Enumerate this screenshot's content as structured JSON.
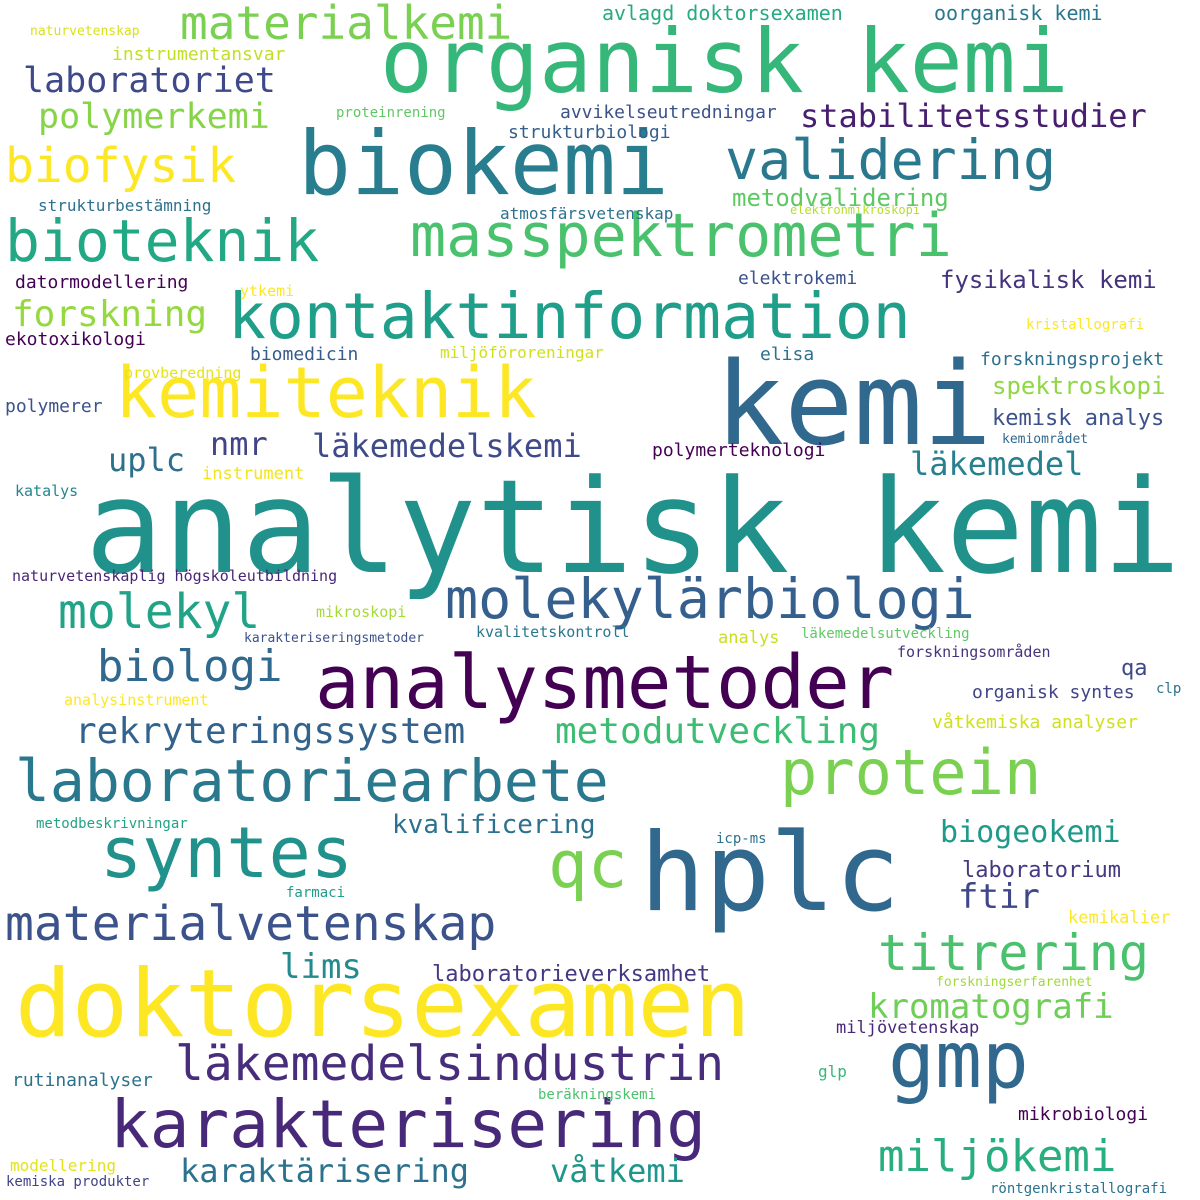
{
  "words": [
    {
      "text": "analytisk kemi",
      "color": "#21918c"
    },
    {
      "text": "kemi",
      "color": "#31688e"
    },
    {
      "text": "organisk kemi",
      "color": "#35b779"
    },
    {
      "text": "biokemi",
      "color": "#287d8e"
    },
    {
      "text": "doktorsexamen",
      "color": "#fde725"
    },
    {
      "text": "hplc",
      "color": "#31688e"
    },
    {
      "text": "analysmetoder",
      "color": "#440154"
    },
    {
      "text": "kontaktinformation",
      "color": "#1f9e89"
    },
    {
      "text": "masspektrometri",
      "color": "#4ac16d"
    },
    {
      "text": "kemiteknik",
      "color": "#fde725"
    },
    {
      "text": "bioteknik",
      "color": "#22a884"
    },
    {
      "text": "validering",
      "color": "#2a788e"
    },
    {
      "text": "gmp",
      "color": "#31688e"
    },
    {
      "text": "karakterisering",
      "color": "#482878"
    },
    {
      "text": "syntes",
      "color": "#21918c"
    },
    {
      "text": "protein",
      "color": "#7ad151"
    },
    {
      "text": "laboratoriearbete",
      "color": "#2a788e"
    },
    {
      "text": "molekylärbiologi",
      "color": "#355f8d"
    },
    {
      "text": "qc",
      "color": "#7ad151"
    },
    {
      "text": "materialkemi",
      "color": "#7ad151"
    },
    {
      "text": "materialvetenskap",
      "color": "#3b528b"
    },
    {
      "text": "läkemedelsindustrin",
      "color": "#472d7b"
    },
    {
      "text": "biofysik",
      "color": "#fde725"
    },
    {
      "text": "molekyl",
      "color": "#20a386"
    },
    {
      "text": "biologi",
      "color": "#31688e"
    },
    {
      "text": "titrering",
      "color": "#4ac16d"
    },
    {
      "text": "miljökemi",
      "color": "#29af7f"
    },
    {
      "text": "laboratoriet",
      "color": "#3e4989"
    },
    {
      "text": "polymerkemi",
      "color": "#86d549"
    },
    {
      "text": "forskning",
      "color": "#95d840"
    },
    {
      "text": "rekryteringssystem",
      "color": "#33638d"
    },
    {
      "text": "metodutveckling",
      "color": "#3dbc74"
    },
    {
      "text": "kromatografi",
      "color": "#6ece58"
    },
    {
      "text": "karaktärisering",
      "color": "#2c728e"
    },
    {
      "text": "våtkemi",
      "color": "#1f968b"
    },
    {
      "text": "stabilitetsstudier",
      "color": "#481f70"
    },
    {
      "text": "nmr",
      "color": "#414487"
    },
    {
      "text": "läkemedelskemi",
      "color": "#3e4a89"
    },
    {
      "text": "uplc",
      "color": "#2d708e"
    },
    {
      "text": "läkemedel",
      "color": "#27808e"
    },
    {
      "text": "biogeokemi",
      "color": "#1f9a8a"
    },
    {
      "text": "kvalificering",
      "color": "#2c728e"
    },
    {
      "text": "ftir",
      "color": "#3f4788"
    },
    {
      "text": "lims",
      "color": "#238a8d"
    },
    {
      "text": "laboratorieverksamhet",
      "color": "#453882"
    },
    {
      "text": "fysikalisk kemi",
      "color": "#46337e"
    },
    {
      "text": "spektroskopi",
      "color": "#8fd744"
    },
    {
      "text": "metodvalidering",
      "color": "#5ec962"
    },
    {
      "text": "laboratorium",
      "color": "#443983"
    },
    {
      "text": "kemisk analys",
      "color": "#3b528b"
    },
    {
      "text": "avlagd doktorsexamen",
      "color": "#25ab82"
    },
    {
      "text": "oorganisk kemi",
      "color": "#2a788e"
    },
    {
      "text": "instrumentansvar",
      "color": "#c2df23"
    },
    {
      "text": "avvikelseutredningar",
      "color": "#3b528b"
    },
    {
      "text": "strukturbiologi",
      "color": "#355f8d"
    },
    {
      "text": "proteinrening",
      "color": "#5ec962"
    },
    {
      "text": "naturvetenskap",
      "color": "#d8e219"
    },
    {
      "text": "strukturbestämning",
      "color": "#2d708e"
    },
    {
      "text": "atmosfärsvetenskap",
      "color": "#2c728e"
    },
    {
      "text": "elektronmikroskopi",
      "color": "#b5de2b"
    },
    {
      "text": "datormodellering",
      "color": "#440154"
    },
    {
      "text": "ytkemi",
      "color": "#fde725"
    },
    {
      "text": "elektrokemi",
      "color": "#3b528b"
    },
    {
      "text": "ekotoxikologi",
      "color": "#440154"
    },
    {
      "text": "biomedicin",
      "color": "#365c8d"
    },
    {
      "text": "miljöföroreningar",
      "color": "#d0e11c"
    },
    {
      "text": "elisa",
      "color": "#2c728e"
    },
    {
      "text": "forskningsprojekt",
      "color": "#2d708e"
    },
    {
      "text": "kristallografi",
      "color": "#fde725"
    },
    {
      "text": "provberedning",
      "color": "#e5e419"
    },
    {
      "text": "polymerer",
      "color": "#3b528b"
    },
    {
      "text": "instrument",
      "color": "#f1e51d"
    },
    {
      "text": "polymerteknologi",
      "color": "#440154"
    },
    {
      "text": "kemiområdet",
      "color": "#31688e"
    },
    {
      "text": "katalys",
      "color": "#24878e"
    },
    {
      "text": "naturvetenskaplig högskoleutbildning",
      "color": "#482677"
    },
    {
      "text": "mikroskopi",
      "color": "#a5db36"
    },
    {
      "text": "karakteriseringsmetoder",
      "color": "#3b528b"
    },
    {
      "text": "kvalitetskontroll",
      "color": "#2a788e"
    },
    {
      "text": "analys",
      "color": "#c8e020"
    },
    {
      "text": "läkemedelsutveckling",
      "color": "#5ec962"
    },
    {
      "text": "forskningsområden",
      "color": "#46337e"
    },
    {
      "text": "qa",
      "color": "#3e4989"
    },
    {
      "text": "organisk syntes",
      "color": "#414487"
    },
    {
      "text": "clp",
      "color": "#2c728e"
    },
    {
      "text": "analysinstrument",
      "color": "#fde725"
    },
    {
      "text": "våtkemiska analyser",
      "color": "#d0e11c"
    },
    {
      "text": "metodbeskrivningar",
      "color": "#20a386"
    },
    {
      "text": "icp-ms",
      "color": "#2c728e"
    },
    {
      "text": "farmaci",
      "color": "#1f9e89"
    },
    {
      "text": "kemikalier",
      "color": "#fde725"
    },
    {
      "text": "forskningserfarenhet",
      "color": "#a0da39"
    },
    {
      "text": "miljövetenskap",
      "color": "#482878"
    },
    {
      "text": "rutinanalyser",
      "color": "#2c728e"
    },
    {
      "text": "glp",
      "color": "#35b779"
    },
    {
      "text": "beräkningskemi",
      "color": "#4ac16d"
    },
    {
      "text": "mikrobiologi",
      "color": "#440154"
    },
    {
      "text": "modellering",
      "color": "#e2e418"
    },
    {
      "text": "kemiska produkter",
      "color": "#414487"
    },
    {
      "text": "röntgenkristallografi",
      "color": "#2c728e"
    }
  ]
}
